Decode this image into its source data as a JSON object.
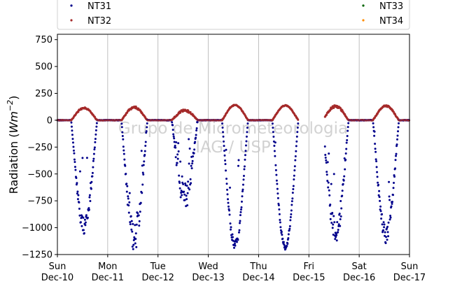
{
  "chart_data": {
    "type": "scatter",
    "title": "",
    "xlabel": "",
    "ylabel": "Radiation (Wm⁻²)",
    "ylabel_parts": {
      "main": "Radiation (",
      "var": "Wm",
      "sup": "−2",
      "close": ")"
    },
    "ylim": [
      -1250,
      800
    ],
    "yticks": [
      -1250,
      -1000,
      -750,
      -500,
      -250,
      0,
      250,
      500,
      750
    ],
    "ytick_labels": [
      "−1250",
      "−1000",
      "−750",
      "−500",
      "−250",
      "0",
      "250",
      "500",
      "750"
    ],
    "xlim": [
      "2017-12-10",
      "2017-12-17"
    ],
    "xticks": [
      {
        "day": "Sun",
        "date": "Dec-10"
      },
      {
        "day": "Mon",
        "date": "Dec-11"
      },
      {
        "day": "Tue",
        "date": "Dec-12"
      },
      {
        "day": "Wed",
        "date": "Dec-13"
      },
      {
        "day": "Thu",
        "date": "Dec-14"
      },
      {
        "day": "Fri",
        "date": "Dec-15"
      },
      {
        "day": "Sat",
        "date": "Dec-16"
      },
      {
        "day": "Sun",
        "date": "Dec-17"
      }
    ],
    "grid": "vertical",
    "legend_position": "top",
    "watermark": [
      "Grupo de Micrometeorologia",
      "IAG / USP"
    ],
    "series": [
      {
        "name": "NT31",
        "color": "#00008b"
      },
      {
        "name": "NT32",
        "color": "#a52a2a"
      },
      {
        "name": "NT33",
        "color": "#006400"
      },
      {
        "name": "NT34",
        "color": "#ff8c00"
      }
    ],
    "daily_profiles": [
      {
        "date": "2017-12-10",
        "nt31_min": -1070,
        "nt32_peak": 120,
        "scatter": 0.15
      },
      {
        "date": "2017-12-11",
        "nt31_min": -1230,
        "nt32_peak": 130,
        "scatter": 0.25
      },
      {
        "date": "2017-12-12",
        "nt31_min": -840,
        "nt32_peak": 100,
        "scatter": 0.35
      },
      {
        "date": "2017-12-13",
        "nt31_min": -1210,
        "nt32_peak": 145,
        "scatter": 0.08
      },
      {
        "date": "2017-12-14",
        "nt31_min": -1210,
        "nt32_peak": 140,
        "scatter": 0.05
      },
      {
        "date": "2017-12-15",
        "nt31_min": -1180,
        "nt32_peak": 140,
        "scatter": 0.25
      },
      {
        "date": "2017-12-16",
        "nt31_min": -1150,
        "nt32_peak": 140,
        "scatter": 0.15
      }
    ],
    "gaps": [
      [
        "2017-12-14T19:00",
        "2017-12-15T07:30"
      ]
    ]
  }
}
